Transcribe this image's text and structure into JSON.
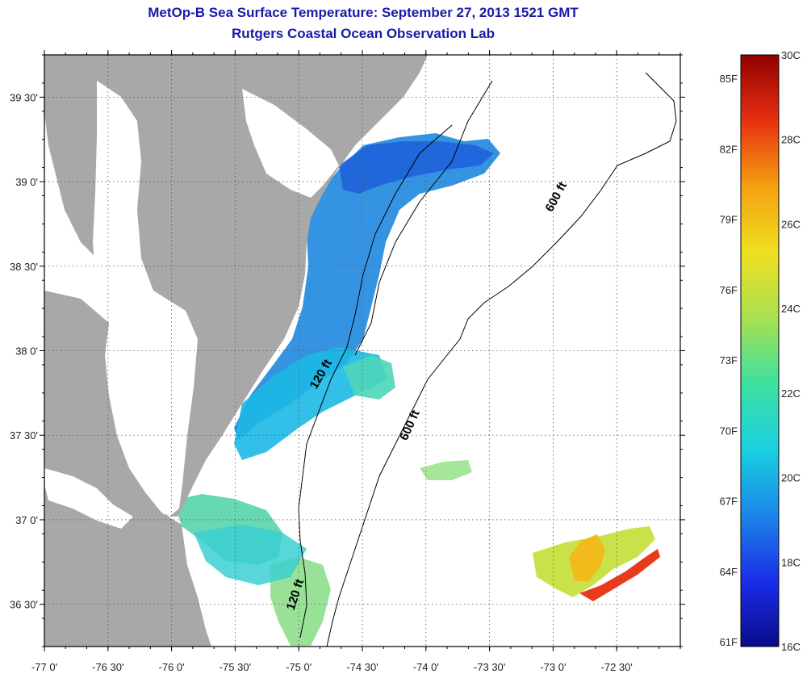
{
  "header": {
    "title": "MetOp-B Sea Surface Temperature:  September 27, 2013 1521 GMT",
    "subtitle": "Rutgers Coastal Ocean Observation Lab"
  },
  "map": {
    "lon_range": [
      -77.0,
      -72.0
    ],
    "lat_range": [
      36.25,
      39.75
    ],
    "lon_ticks": [
      {
        "value": -77.0,
        "label": "-77 0'"
      },
      {
        "value": -76.5,
        "label": "-76 30'"
      },
      {
        "value": -76.0,
        "label": "-76 0'"
      },
      {
        "value": -75.5,
        "label": "-75 30'"
      },
      {
        "value": -75.0,
        "label": "-75 0'"
      },
      {
        "value": -74.5,
        "label": "-74 30'"
      },
      {
        "value": -74.0,
        "label": "-74 0'"
      },
      {
        "value": -73.5,
        "label": "-73 30'"
      },
      {
        "value": -73.0,
        "label": "-73 0'"
      },
      {
        "value": -72.5,
        "label": "-72 30'"
      }
    ],
    "lat_ticks": [
      {
        "value": 39.5,
        "label": "39 30'"
      },
      {
        "value": 39.0,
        "label": "39 0'"
      },
      {
        "value": 38.5,
        "label": "38 30'"
      },
      {
        "value": 38.0,
        "label": "38 0'"
      },
      {
        "value": 37.5,
        "label": "37 30'"
      },
      {
        "value": 37.0,
        "label": "37 0'"
      },
      {
        "value": 36.5,
        "label": "36 30'"
      }
    ],
    "contour_labels": [
      {
        "text": "600 ft",
        "lon": -72.95,
        "lat": 38.9,
        "angle": -62
      },
      {
        "text": "600 ft",
        "lon": -74.1,
        "lat": 37.55,
        "angle": -66
      },
      {
        "text": "120 ft",
        "lon": -74.8,
        "lat": 37.85,
        "angle": -60
      },
      {
        "text": "120 ft",
        "lon": -75.0,
        "lat": 36.55,
        "angle": -72
      }
    ],
    "colors": {
      "land": "#a8a8a8",
      "no_data": "#ffffff",
      "grid": "#555555"
    }
  },
  "colorbar": {
    "celsius_ticks": [
      "30C",
      "28C",
      "26C",
      "24C",
      "22C",
      "20C",
      "18C",
      "16C"
    ],
    "fahrenheit_ticks": [
      "85F",
      "82F",
      "79F",
      "76F",
      "73F",
      "70F",
      "67F",
      "64F",
      "61F"
    ],
    "celsius_values": [
      30,
      28,
      26,
      24,
      22,
      20,
      18,
      16
    ],
    "fahrenheit_values": [
      85,
      82,
      79,
      76,
      73,
      70,
      67,
      64,
      61
    ],
    "range_c": [
      16,
      30
    ],
    "stops": [
      "#0a0a8a",
      "#1a2ee8",
      "#1c86e8",
      "#1ad0e0",
      "#3ee0a0",
      "#a8e050",
      "#f0e020",
      "#f4a010",
      "#e83010",
      "#900000"
    ]
  }
}
